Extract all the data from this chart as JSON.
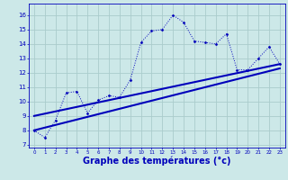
{
  "background_color": "#cce8e8",
  "grid_color": "#aacccc",
  "line_color": "#0000bb",
  "xlabel": "Graphe des températures (°c)",
  "xlabel_fontsize": 7,
  "yticks": [
    7,
    8,
    9,
    10,
    11,
    12,
    13,
    14,
    15,
    16
  ],
  "xticks": [
    0,
    1,
    2,
    3,
    4,
    5,
    6,
    7,
    8,
    9,
    10,
    11,
    12,
    13,
    14,
    15,
    16,
    17,
    18,
    19,
    20,
    21,
    22,
    23
  ],
  "xlim": [
    -0.5,
    23.5
  ],
  "ylim": [
    6.8,
    16.8
  ],
  "temp_x": [
    0,
    1,
    2,
    3,
    4,
    5,
    6,
    7,
    8,
    9,
    10,
    11,
    12,
    13,
    14,
    15,
    16,
    17,
    18,
    19,
    20,
    21,
    22,
    23
  ],
  "temp_y": [
    8.0,
    7.5,
    8.7,
    10.6,
    10.7,
    9.2,
    10.1,
    10.4,
    10.3,
    11.5,
    14.1,
    14.9,
    15.0,
    16.0,
    15.5,
    14.2,
    14.1,
    14.0,
    14.7,
    12.2,
    12.2,
    13.0,
    13.8,
    12.6
  ],
  "trend1_x": [
    0,
    23
  ],
  "trend1_y": [
    8.0,
    12.3
  ],
  "trend2_x": [
    0,
    23
  ],
  "trend2_y": [
    9.0,
    12.6
  ]
}
